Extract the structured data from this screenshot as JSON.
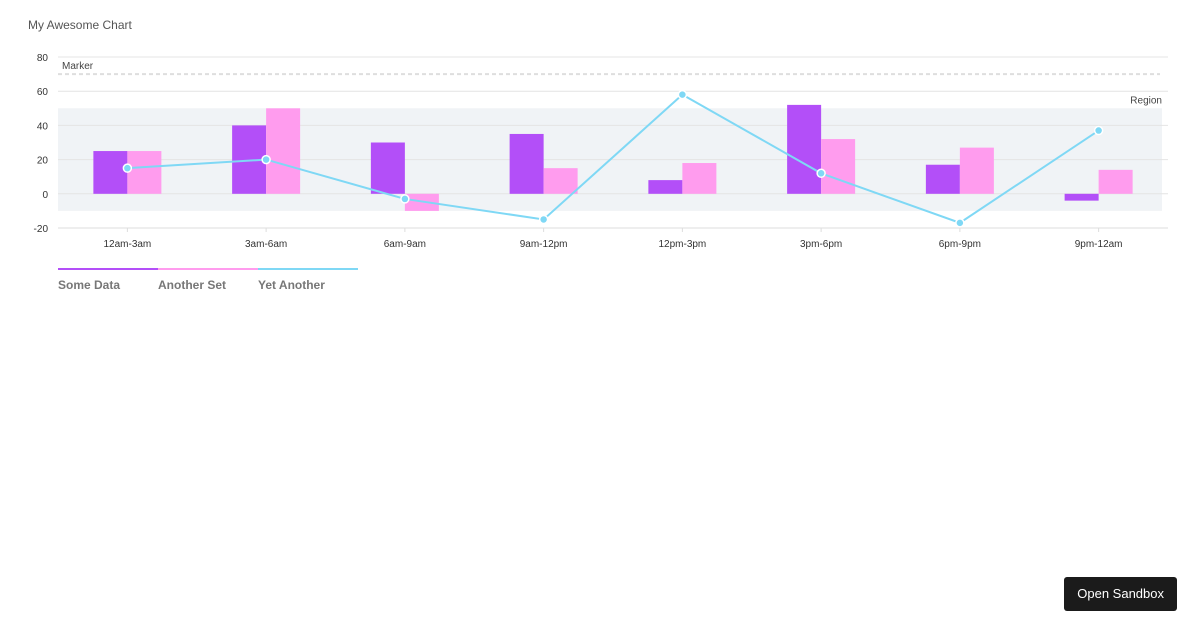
{
  "chart_data": {
    "type": "bar",
    "title": "My Awesome Chart",
    "categories": [
      "12am-3am",
      "3am-6am",
      "6am-9am",
      "9am-12pm",
      "12pm-3pm",
      "3pm-6pm",
      "6pm-9pm",
      "9pm-12am"
    ],
    "series": [
      {
        "name": "Some Data",
        "type": "bar",
        "color": "#b34ff8",
        "values": [
          25,
          40,
          30,
          35,
          8,
          52,
          17,
          -4
        ]
      },
      {
        "name": "Another Set",
        "type": "bar",
        "color": "#ff9cee",
        "values": [
          25,
          50,
          -10,
          15,
          18,
          32,
          27,
          14
        ]
      },
      {
        "name": "Yet Another",
        "type": "line",
        "color": "#7fd8f5",
        "values": [
          15,
          20,
          -3,
          -15,
          58,
          12,
          -17,
          37
        ]
      }
    ],
    "ylim": [
      -20,
      80
    ],
    "yticks": [
      -20,
      0,
      20,
      40,
      60,
      80
    ],
    "grid": true,
    "annotations": {
      "marker": {
        "label": "Marker",
        "value": 70
      },
      "region": {
        "label": "Region",
        "from": -10,
        "to": 50
      }
    },
    "legend_position": "bottom-left"
  },
  "sandbox_button": {
    "label": "Open Sandbox"
  }
}
